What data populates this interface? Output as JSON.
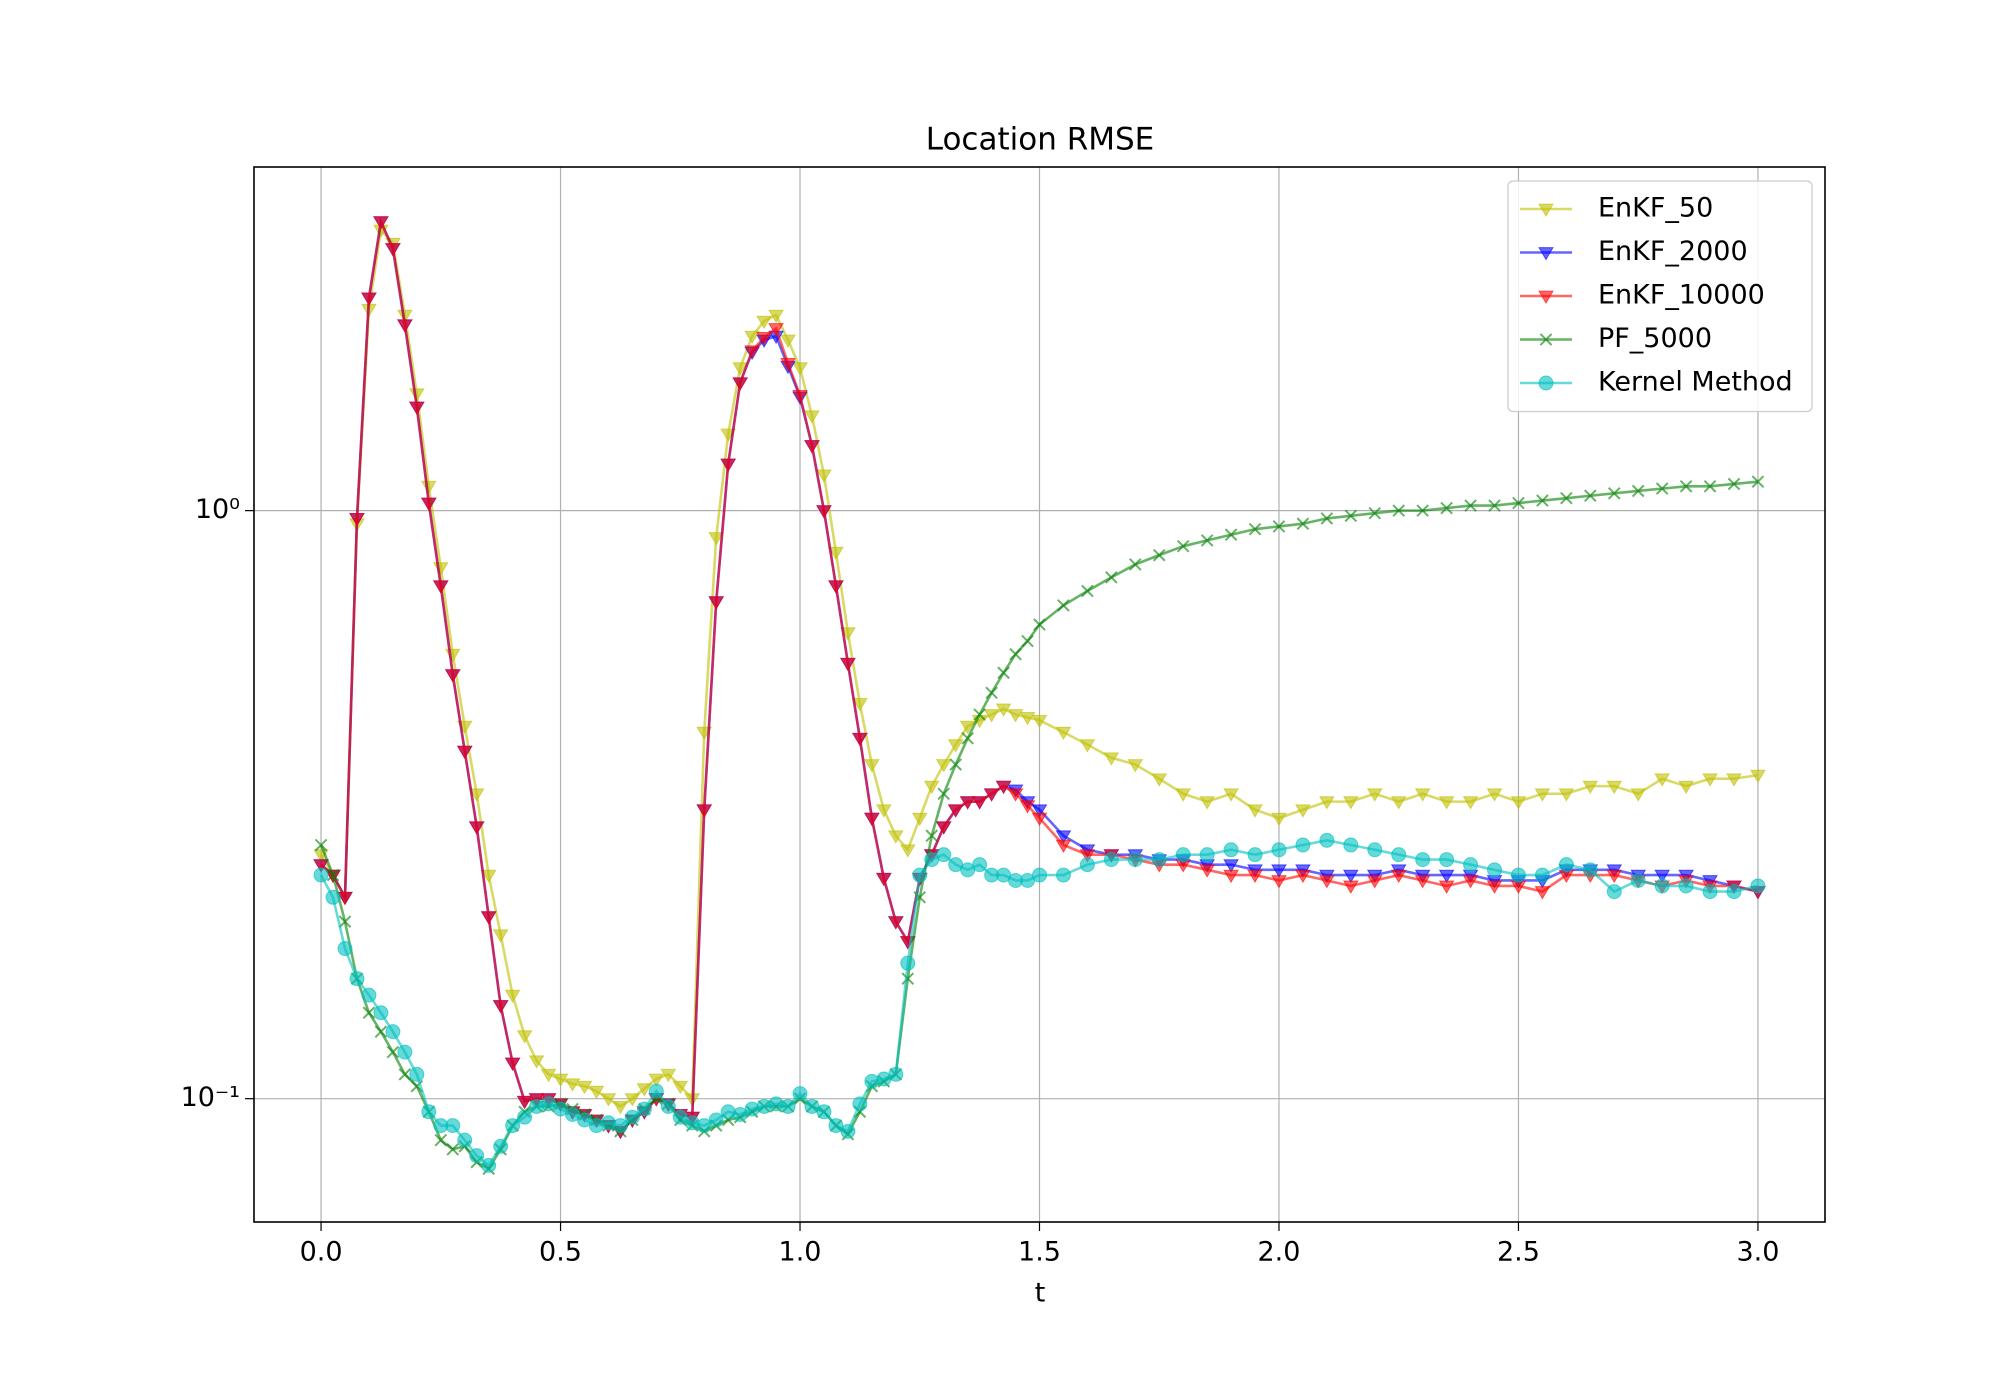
{
  "chart_data": {
    "type": "line",
    "title": "Location RMSE",
    "x_label": "t",
    "yscale": "log",
    "grid": true,
    "legend": "upper right",
    "xlim": [
      -0.14,
      3.14
    ],
    "ylim": [
      0.0617,
      3.84
    ],
    "xticks": [
      {
        "value": 0,
        "label": "0.0"
      },
      0.5,
      {
        "value": 1,
        "label": "1.0"
      },
      1.5,
      {
        "value": 2,
        "label": "2.0"
      },
      2.5,
      {
        "value": 3,
        "label": "3.0"
      }
    ],
    "yticks": [
      {
        "value": 0.1,
        "label": "10⁻¹"
      },
      {
        "value": 1,
        "label": "10⁰"
      }
    ],
    "x": [
      0,
      0.025,
      0.05,
      0.075,
      0.1,
      0.125,
      0.15,
      0.175,
      0.2,
      0.225,
      0.25,
      0.275,
      0.3,
      0.325,
      0.35,
      0.375,
      0.4,
      0.425,
      0.45,
      0.475,
      0.5,
      0.525,
      0.55,
      0.575,
      0.6,
      0.625,
      0.65,
      0.675,
      0.7,
      0.725,
      0.75,
      0.775,
      0.8,
      0.825,
      0.85,
      0.875,
      0.9,
      0.925,
      0.95,
      0.975,
      1.0,
      1.025,
      1.05,
      1.075,
      1.1,
      1.125,
      1.15,
      1.175,
      1.2,
      1.225,
      1.25,
      1.275,
      1.3,
      1.325,
      1.35,
      1.375,
      1.4,
      1.425,
      1.45,
      1.475,
      1.5,
      1.55,
      1.6,
      1.65,
      1.7,
      1.75,
      1.8,
      1.85,
      1.9,
      1.95,
      2.0,
      2.05,
      2.1,
      2.15,
      2.2,
      2.25,
      2.3,
      2.35,
      2.4,
      2.45,
      2.5,
      2.55,
      2.6,
      2.65,
      2.7,
      2.75,
      2.8,
      2.85,
      2.9,
      2.95,
      3.0
    ],
    "series": [
      {
        "name": "EnKF_50",
        "color": "#bfbf00",
        "marker": "v",
        "alpha": 0.6,
        "values": [
          0.26,
          0.24,
          0.22,
          0.95,
          2.2,
          3.0,
          2.85,
          2.15,
          1.58,
          1.1,
          0.8,
          0.57,
          0.43,
          0.33,
          0.24,
          0.19,
          0.15,
          0.128,
          0.116,
          0.11,
          0.108,
          0.106,
          0.105,
          0.103,
          0.1,
          0.097,
          0.1,
          0.104,
          0.108,
          0.11,
          0.105,
          0.1,
          0.42,
          0.9,
          1.35,
          1.75,
          1.98,
          2.1,
          2.15,
          1.95,
          1.75,
          1.45,
          1.15,
          0.85,
          0.62,
          0.47,
          0.37,
          0.31,
          0.28,
          0.265,
          0.3,
          0.34,
          0.37,
          0.4,
          0.43,
          0.44,
          0.45,
          0.46,
          0.45,
          0.445,
          0.44,
          0.42,
          0.4,
          0.38,
          0.37,
          0.35,
          0.33,
          0.32,
          0.33,
          0.31,
          0.3,
          0.31,
          0.32,
          0.32,
          0.33,
          0.32,
          0.33,
          0.32,
          0.32,
          0.33,
          0.32,
          0.33,
          0.33,
          0.34,
          0.34,
          0.33,
          0.35,
          0.34,
          0.35,
          0.35,
          0.355
        ]
      },
      {
        "name": "EnKF_2000",
        "color": "#0000ff",
        "marker": "v",
        "alpha": 0.6,
        "values": [
          0.25,
          0.24,
          0.22,
          0.97,
          2.3,
          3.1,
          2.79,
          2.07,
          1.5,
          1.03,
          0.745,
          0.526,
          0.39,
          0.29,
          0.204,
          0.144,
          0.115,
          0.099,
          0.1,
          0.1,
          0.098,
          0.095,
          0.094,
          0.092,
          0.09,
          0.088,
          0.092,
          0.095,
          0.1,
          0.098,
          0.094,
          0.093,
          0.31,
          0.7,
          1.2,
          1.65,
          1.86,
          1.95,
          1.98,
          1.76,
          1.56,
          1.29,
          1.0,
          0.745,
          0.55,
          0.41,
          0.3,
          0.237,
          0.2,
          0.185,
          0.237,
          0.26,
          0.29,
          0.31,
          0.32,
          0.32,
          0.33,
          0.34,
          0.335,
          0.32,
          0.31,
          0.28,
          0.265,
          0.26,
          0.26,
          0.255,
          0.255,
          0.25,
          0.25,
          0.245,
          0.245,
          0.245,
          0.24,
          0.24,
          0.24,
          0.245,
          0.24,
          0.24,
          0.24,
          0.235,
          0.235,
          0.235,
          0.245,
          0.245,
          0.245,
          0.24,
          0.24,
          0.24,
          0.235,
          0.23,
          0.225
        ]
      },
      {
        "name": "EnKF_10000",
        "color": "#ff0000",
        "marker": "v",
        "alpha": 0.6,
        "values": [
          0.25,
          0.24,
          0.22,
          0.97,
          2.3,
          3.1,
          2.79,
          2.07,
          1.5,
          1.03,
          0.745,
          0.526,
          0.39,
          0.29,
          0.204,
          0.144,
          0.115,
          0.099,
          0.1,
          0.1,
          0.098,
          0.095,
          0.094,
          0.092,
          0.09,
          0.088,
          0.092,
          0.095,
          0.1,
          0.098,
          0.094,
          0.093,
          0.31,
          0.7,
          1.2,
          1.65,
          1.87,
          1.97,
          2.04,
          1.78,
          1.57,
          1.29,
          1.0,
          0.745,
          0.55,
          0.41,
          0.3,
          0.237,
          0.2,
          0.185,
          0.237,
          0.26,
          0.29,
          0.31,
          0.32,
          0.32,
          0.33,
          0.34,
          0.33,
          0.315,
          0.3,
          0.27,
          0.26,
          0.26,
          0.255,
          0.25,
          0.25,
          0.245,
          0.24,
          0.24,
          0.235,
          0.24,
          0.235,
          0.23,
          0.235,
          0.24,
          0.235,
          0.23,
          0.235,
          0.23,
          0.23,
          0.225,
          0.24,
          0.24,
          0.24,
          0.235,
          0.23,
          0.235,
          0.23,
          0.23,
          0.225
        ]
      },
      {
        "name": "PF_5000",
        "color": "#008000",
        "marker": "x",
        "alpha": 0.6,
        "values": [
          0.27,
          0.24,
          0.2,
          0.16,
          0.14,
          0.13,
          0.12,
          0.11,
          0.105,
          0.095,
          0.085,
          0.082,
          0.083,
          0.078,
          0.076,
          0.082,
          0.09,
          0.095,
          0.097,
          0.097,
          0.098,
          0.096,
          0.094,
          0.092,
          0.09,
          0.088,
          0.092,
          0.096,
          0.1,
          0.098,
          0.092,
          0.09,
          0.088,
          0.09,
          0.092,
          0.093,
          0.095,
          0.097,
          0.097,
          0.097,
          0.1,
          0.097,
          0.095,
          0.09,
          0.087,
          0.095,
          0.105,
          0.107,
          0.11,
          0.16,
          0.22,
          0.28,
          0.33,
          0.37,
          0.41,
          0.45,
          0.49,
          0.53,
          0.57,
          0.6,
          0.64,
          0.69,
          0.73,
          0.77,
          0.81,
          0.84,
          0.87,
          0.89,
          0.91,
          0.93,
          0.94,
          0.95,
          0.97,
          0.98,
          0.99,
          1.0,
          1.0,
          1.01,
          1.02,
          1.02,
          1.03,
          1.04,
          1.05,
          1.06,
          1.07,
          1.08,
          1.09,
          1.1,
          1.1,
          1.11,
          1.12
        ]
      },
      {
        "name": "Kernel Method",
        "color": "#00bfbf",
        "marker": "o",
        "alpha": 0.6,
        "values": [
          0.24,
          0.22,
          0.18,
          0.16,
          0.15,
          0.14,
          0.13,
          0.12,
          0.11,
          0.095,
          0.09,
          0.09,
          0.085,
          0.08,
          0.077,
          0.083,
          0.09,
          0.093,
          0.097,
          0.098,
          0.096,
          0.094,
          0.092,
          0.09,
          0.091,
          0.09,
          0.093,
          0.096,
          0.103,
          0.097,
          0.093,
          0.091,
          0.09,
          0.092,
          0.095,
          0.094,
          0.096,
          0.097,
          0.098,
          0.097,
          0.102,
          0.097,
          0.095,
          0.09,
          0.088,
          0.098,
          0.107,
          0.108,
          0.11,
          0.17,
          0.24,
          0.255,
          0.26,
          0.25,
          0.245,
          0.25,
          0.24,
          0.24,
          0.235,
          0.235,
          0.24,
          0.24,
          0.25,
          0.255,
          0.255,
          0.255,
          0.26,
          0.26,
          0.265,
          0.26,
          0.265,
          0.27,
          0.275,
          0.27,
          0.265,
          0.26,
          0.255,
          0.255,
          0.25,
          0.245,
          0.24,
          0.24,
          0.25,
          0.245,
          0.225,
          0.235,
          0.23,
          0.23,
          0.225,
          0.225,
          0.23
        ]
      }
    ]
  }
}
